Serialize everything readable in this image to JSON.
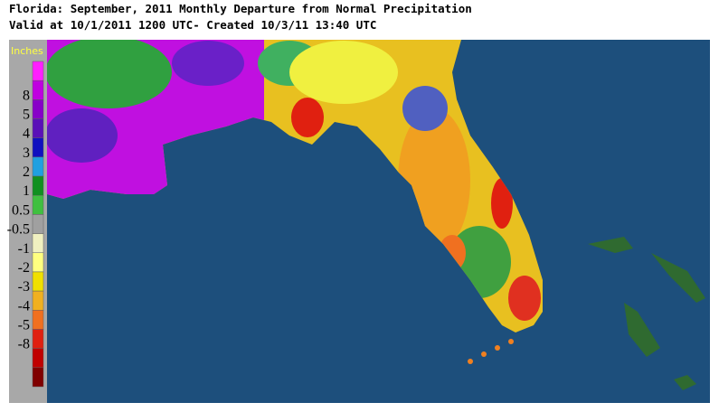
{
  "header": {
    "title": "Florida: September, 2011 Monthly Departure from Normal Precipitation",
    "subtitle": "Valid at 10/1/2011 1200 UTC- Created 10/3/11 13:40 UTC"
  },
  "legend": {
    "title": "Inches",
    "labels": [
      8,
      5,
      4,
      3,
      2,
      1,
      0.5,
      -0.5,
      -1,
      -2,
      -3,
      -4,
      -5,
      -8
    ],
    "colors": [
      "#ff20ff",
      "#c000e0",
      "#8800c8",
      "#5a10b8",
      "#1010c0",
      "#20a0e0",
      "#109020",
      "#40c040",
      "#a0a0a0",
      "#f0f0c0",
      "#ffff80",
      "#f0e000",
      "#f0b020",
      "#f07020",
      "#e02010",
      "#c00000",
      "#800000"
    ]
  }
}
